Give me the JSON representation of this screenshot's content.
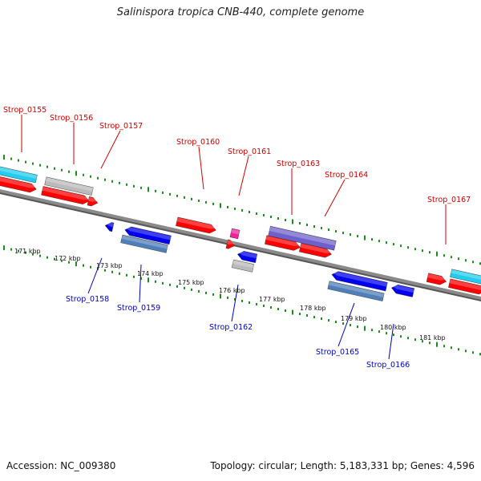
{
  "title": "Salinispora tropica CNB-440, complete genome",
  "footer": {
    "accession": "Accession: NC_009380",
    "summary": "Topology: circular; Length: 5,183,331 bp; Genes: 4,596"
  },
  "colors": {
    "forward_label": "#cc0000",
    "reverse_label": "#0000bb",
    "backbone": "#8a8a8a",
    "tick_dots": "#1f8a1f",
    "cds_red": "#ff0000",
    "cds_blue": "#0000ee",
    "steel_blue": "#4f7fb8",
    "purple": "#7060cc",
    "cyan": "#22ccee",
    "gray": "#bbbbbb",
    "magenta": "#ee2299"
  },
  "scale_labels": [
    "171 kbp",
    "172 kbp",
    "173 kbp",
    "174 kbp",
    "175 kbp",
    "176 kbp",
    "177 kbp",
    "178 kbp",
    "179 kbp",
    "180 kbp",
    "181 kbp"
  ],
  "forward_genes": [
    {
      "label": "Strop_0155"
    },
    {
      "label": "Strop_0156"
    },
    {
      "label": "Strop_0157"
    },
    {
      "label": "Strop_0160"
    },
    {
      "label": "Strop_0161"
    },
    {
      "label": "Strop_0163"
    },
    {
      "label": "Strop_0164"
    },
    {
      "label": "Strop_0167"
    }
  ],
  "reverse_genes": [
    {
      "label": "Strop_0158"
    },
    {
      "label": "Strop_0159"
    },
    {
      "label": "Strop_0162"
    },
    {
      "label": "Strop_0165"
    },
    {
      "label": "Strop_0166"
    }
  ]
}
